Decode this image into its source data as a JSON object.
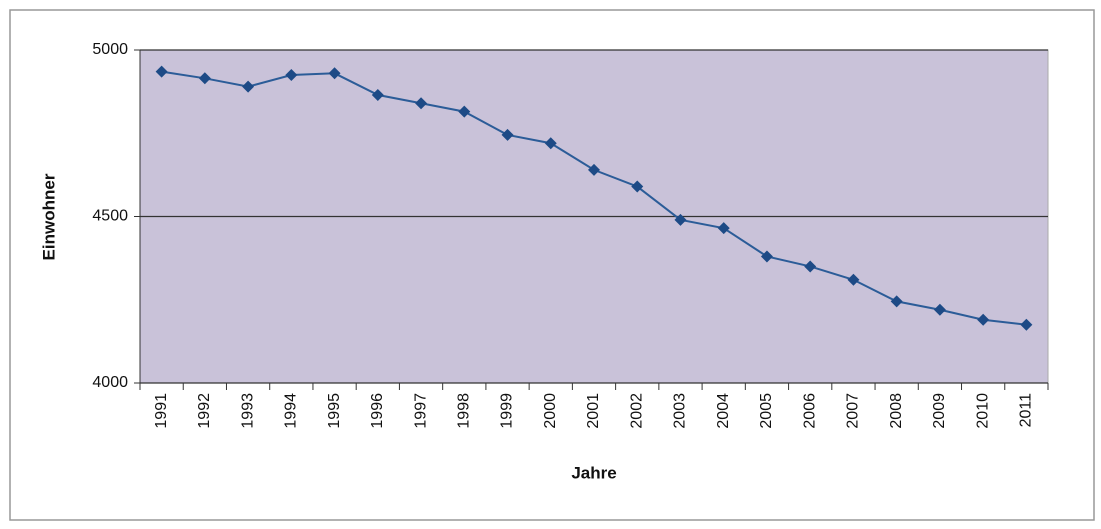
{
  "chart_data": {
    "type": "line",
    "xlabel": "Jahre",
    "ylabel": "Einwohner",
    "categories": [
      "1991",
      "1992",
      "1993",
      "1994",
      "1995",
      "1996",
      "1997",
      "1998",
      "1999",
      "2000",
      "2001",
      "2002",
      "2003",
      "2004",
      "2005",
      "2006",
      "2007",
      "2008",
      "2009",
      "2010",
      "2011"
    ],
    "series": [
      {
        "name": "Einwohner",
        "color": "#2b5c98",
        "values": [
          4935,
          4915,
          4890,
          4925,
          4930,
          4865,
          4840,
          4815,
          4745,
          4720,
          4640,
          4590,
          4490,
          4465,
          4380,
          4350,
          4310,
          4245,
          4220,
          4190,
          4175
        ]
      }
    ],
    "ylim": [
      4000,
      5000
    ],
    "yticks": [
      4000,
      4500,
      5000
    ],
    "grid": true
  }
}
